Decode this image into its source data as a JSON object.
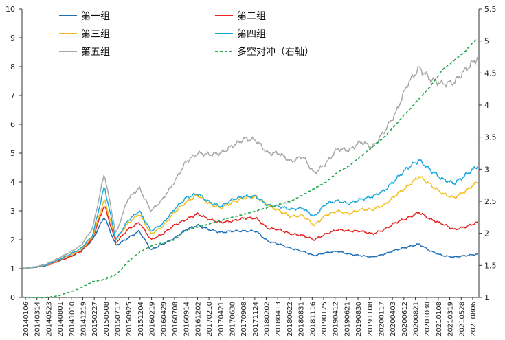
{
  "chart_data": {
    "type": "line",
    "title": "",
    "xlabel": "",
    "ylabel": "",
    "ylim": [
      0,
      10
    ],
    "y2lim": [
      1,
      5.5
    ],
    "y_ticks": [
      0,
      1,
      2,
      3,
      4,
      5,
      6,
      7,
      8,
      9,
      10
    ],
    "y2_ticks": [
      "1",
      "1.5",
      "2",
      "2.5",
      "3",
      "3.5",
      "4",
      "4.5",
      "5",
      "5.5"
    ],
    "x_tick_labels": [
      "20140106",
      "20140314",
      "20140523",
      "20140801",
      "20141010",
      "20141219",
      "20150227",
      "20150508",
      "20150717",
      "20150925",
      "20151204",
      "20160219",
      "20160429",
      "20160708",
      "20160914",
      "20161202",
      "20170210",
      "20170421",
      "20170630",
      "20170908",
      "20171124",
      "20180202",
      "20180413",
      "20180622",
      "20180831",
      "20181116",
      "20190125",
      "20190412",
      "20190621",
      "20190830",
      "20191108",
      "20200117",
      "20200403",
      "20200612",
      "20200821",
      "20201030",
      "20210108",
      "20210319",
      "20210528",
      "20210806"
    ],
    "legend_position": "top-inside",
    "grid": false,
    "series": [
      {
        "name": "第一组",
        "axis": "left",
        "color": "#1f6fb4",
        "dash": false,
        "values": [
          1.0,
          1.05,
          1.1,
          1.25,
          1.4,
          1.6,
          2.0,
          2.8,
          1.8,
          2.05,
          2.3,
          1.65,
          1.85,
          2.05,
          2.35,
          2.5,
          2.35,
          2.25,
          2.3,
          2.3,
          2.3,
          1.95,
          1.85,
          1.7,
          1.6,
          1.45,
          1.55,
          1.6,
          1.5,
          1.45,
          1.4,
          1.5,
          1.65,
          1.75,
          1.85,
          1.6,
          1.45,
          1.4,
          1.45,
          1.5
        ]
      },
      {
        "name": "第二组",
        "axis": "left",
        "color": "#e8231f",
        "dash": false,
        "values": [
          1.0,
          1.05,
          1.1,
          1.25,
          1.4,
          1.6,
          2.05,
          3.2,
          1.9,
          2.35,
          2.6,
          2.0,
          2.2,
          2.5,
          2.7,
          2.9,
          2.7,
          2.6,
          2.65,
          2.75,
          2.75,
          2.4,
          2.35,
          2.2,
          2.15,
          2.0,
          2.2,
          2.35,
          2.3,
          2.3,
          2.2,
          2.35,
          2.6,
          2.75,
          2.95,
          2.7,
          2.55,
          2.35,
          2.45,
          2.6
        ]
      },
      {
        "name": "第三组",
        "axis": "left",
        "color": "#f2bd1c",
        "dash": false,
        "values": [
          1.0,
          1.05,
          1.12,
          1.28,
          1.45,
          1.65,
          2.1,
          3.4,
          2.0,
          2.55,
          2.9,
          2.2,
          2.45,
          2.95,
          3.3,
          3.55,
          3.25,
          3.1,
          3.3,
          3.45,
          3.5,
          3.2,
          3.0,
          2.8,
          2.85,
          2.5,
          2.85,
          3.0,
          2.9,
          3.05,
          3.05,
          3.2,
          3.55,
          3.85,
          4.2,
          3.9,
          3.6,
          3.45,
          3.7,
          4.0
        ]
      },
      {
        "name": "第四组",
        "axis": "left",
        "color": "#16a9df",
        "dash": false,
        "values": [
          1.0,
          1.05,
          1.12,
          1.3,
          1.48,
          1.7,
          2.15,
          3.85,
          2.0,
          2.65,
          3.0,
          2.3,
          2.55,
          3.05,
          3.45,
          3.6,
          3.3,
          3.15,
          3.4,
          3.5,
          3.5,
          3.2,
          3.15,
          3.05,
          3.1,
          2.8,
          3.25,
          3.35,
          3.25,
          3.4,
          3.5,
          3.7,
          4.1,
          4.5,
          4.75,
          4.4,
          4.1,
          3.95,
          4.25,
          4.55
        ]
      },
      {
        "name": "第五组",
        "axis": "left",
        "color": "#a8a8a8",
        "dash": false,
        "values": [
          1.0,
          1.05,
          1.15,
          1.35,
          1.55,
          1.8,
          2.4,
          4.3,
          2.2,
          3.4,
          3.8,
          3.0,
          3.4,
          4.0,
          4.7,
          5.0,
          4.95,
          5.0,
          5.25,
          5.5,
          5.45,
          5.0,
          5.0,
          4.7,
          4.9,
          4.3,
          4.65,
          5.15,
          5.1,
          5.4,
          5.2,
          5.75,
          6.4,
          7.4,
          7.95,
          7.55,
          7.4,
          7.45,
          7.9,
          8.3
        ]
      },
      {
        "name": "多空对冲（右轴）",
        "axis": "right",
        "color": "#20a84a",
        "dash": true,
        "values": [
          1.0,
          1.0,
          1.0,
          1.02,
          1.08,
          1.15,
          1.25,
          1.28,
          1.35,
          1.55,
          1.7,
          1.8,
          1.85,
          1.9,
          2.05,
          2.1,
          2.15,
          2.2,
          2.25,
          2.3,
          2.35,
          2.4,
          2.45,
          2.5,
          2.6,
          2.7,
          2.8,
          2.95,
          3.05,
          3.2,
          3.35,
          3.5,
          3.7,
          3.9,
          4.1,
          4.3,
          4.55,
          4.7,
          4.85,
          5.05
        ]
      }
    ]
  }
}
